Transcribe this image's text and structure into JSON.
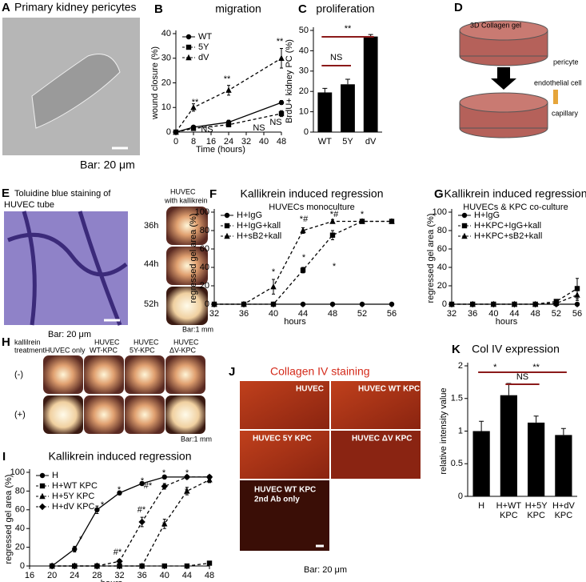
{
  "panels": {
    "A": {
      "letter": "A",
      "title": "Primary kidney pericytes",
      "scale_bar": "Bar: 20 μm"
    },
    "D": {
      "letter": "D",
      "gel_label": "3D Collagen gel",
      "legend": [
        "pericyte",
        "endothelial cell",
        "capillary"
      ]
    },
    "E": {
      "letter": "E",
      "title": [
        "Toluidine blue staining of",
        "HUVEC tube"
      ],
      "scale_bar": "Bar: 20 μm",
      "inset_title": [
        "HUVEC",
        "with kallikrein"
      ],
      "times": [
        "36h",
        "44h",
        "52h"
      ],
      "inset_scale_bar": "Bar:1 mm"
    },
    "H": {
      "letter": "H",
      "row_header": [
        "kallilrein",
        "treatment"
      ],
      "columns": [
        [
          "HUVEC only"
        ],
        [
          "HUVEC",
          "WT-KPC"
        ],
        [
          "HUVEC",
          "5Y-KPC"
        ],
        [
          "HUVEC",
          "ΔV-KPC"
        ]
      ],
      "rows": [
        "(-)",
        "(+)"
      ],
      "scale_bar": "Bar:1 mm"
    },
    "J": {
      "letter": "J",
      "title": "Collagen IV staining",
      "tiles": [
        "HUVEC",
        "HUVEC WT KPC",
        "HUVEC 5Y KPC",
        "HUVEC ΔV KPC",
        "HUVEC WT KPC"
      ],
      "tile_note": "2nd Ab only",
      "scale_bar": "Bar: 20 μm"
    }
  },
  "chart_data": [
    {
      "panel": "B",
      "type": "line",
      "title": "migration",
      "x_label": "Time (hours)",
      "y_label": "wound closure (%)",
      "x": [
        0,
        8,
        24,
        48
      ],
      "xlim": [
        0,
        48
      ],
      "xticks": [
        0,
        8,
        16,
        24,
        32,
        40,
        48
      ],
      "ylim": [
        0,
        40
      ],
      "yticks": [
        0,
        10,
        20,
        30,
        40
      ],
      "legend": "top-left",
      "series": [
        {
          "name": "WT",
          "marker": "circle",
          "dash": false,
          "color": "#000000",
          "values": [
            0,
            2,
            4,
            12
          ],
          "errors": [
            0,
            0.5,
            0.8,
            0.8
          ]
        },
        {
          "name": "5Y",
          "marker": "square",
          "dash": true,
          "color": "#000000",
          "values": [
            0,
            1.5,
            3,
            7.5
          ],
          "errors": [
            0,
            0.4,
            0.6,
            1.2
          ]
        },
        {
          "name": "dV",
          "marker": "triangle",
          "dash": true,
          "color": "#000000",
          "values": [
            0,
            10,
            17,
            30
          ],
          "errors": [
            0,
            1.5,
            2,
            4
          ]
        }
      ],
      "annotations": [
        "**",
        "**",
        "**",
        "NS",
        "NS",
        "NS"
      ]
    },
    {
      "panel": "C",
      "type": "bar",
      "title": "proliferation",
      "y_label": "BrdU+ kidney PC (%)",
      "categories": [
        "WT",
        "5Y",
        "dV"
      ],
      "values": [
        19.5,
        23.5,
        47
      ],
      "errors": [
        2,
        2.5,
        1
      ],
      "color": "#000000",
      "ylim": [
        0,
        50
      ],
      "yticks": [
        0,
        10,
        20,
        30,
        40,
        50
      ],
      "annotations": [
        "NS",
        "**"
      ],
      "bracket_color": "#8b1a1a"
    },
    {
      "panel": "F",
      "type": "line",
      "title": "Kallikrein induced regression",
      "subtitle": "HUVECs monoculture",
      "x_label": "hours",
      "y_label": "regressed gel area (%)",
      "x": [
        32,
        36,
        40,
        44,
        48,
        52,
        56
      ],
      "xlim": [
        32,
        56
      ],
      "xticks": [
        32,
        36,
        40,
        44,
        48,
        52,
        56
      ],
      "ylim": [
        0,
        100
      ],
      "yticks": [
        0,
        20,
        40,
        60,
        80,
        100
      ],
      "legend": "top-left",
      "series": [
        {
          "name": "H+IgG",
          "marker": "circle",
          "dash": false,
          "color": "#000000",
          "values": [
            0,
            0,
            0,
            0,
            0,
            0,
            0
          ]
        },
        {
          "name": "H+IgG+kall",
          "marker": "square",
          "dash": true,
          "color": "#000000",
          "values": [
            0,
            0,
            0,
            37,
            75,
            90,
            90
          ],
          "errors": [
            0,
            0,
            0,
            3,
            5,
            1,
            1
          ]
        },
        {
          "name": "H+sB2+kall",
          "marker": "triangle",
          "dash": true,
          "color": "#000000",
          "values": [
            0,
            0,
            19,
            80,
            90,
            90,
            90
          ],
          "errors": [
            0,
            0,
            8,
            3,
            2,
            1,
            1
          ]
        }
      ],
      "annotations": [
        "*",
        "*#",
        "*#",
        "*",
        "*",
        "*"
      ]
    },
    {
      "panel": "G",
      "type": "line",
      "title": "Kallikrein induced regression",
      "subtitle": "HUVECs & KPC co-culture",
      "x_label": "hours",
      "y_label": "regressed gel area (%)",
      "x": [
        32,
        36,
        40,
        44,
        48,
        52,
        56
      ],
      "xlim": [
        32,
        56
      ],
      "xticks": [
        32,
        36,
        40,
        44,
        48,
        52,
        56
      ],
      "ylim": [
        0,
        100
      ],
      "yticks": [
        0,
        20,
        40,
        60,
        80,
        100
      ],
      "legend": "top-left",
      "series": [
        {
          "name": "H+IgG",
          "marker": "circle",
          "dash": false,
          "color": "#000000",
          "values": [
            0,
            0,
            0,
            0,
            0,
            0,
            0
          ]
        },
        {
          "name": "H+KPC+IgG+kall",
          "marker": "square",
          "dash": true,
          "color": "#000000",
          "values": [
            0,
            0,
            0,
            0,
            0,
            3,
            17
          ],
          "errors": [
            0,
            0,
            0,
            0,
            0,
            1,
            11
          ]
        },
        {
          "name": "H+KPC+sB2+kall",
          "marker": "triangle",
          "dash": true,
          "color": "#000000",
          "values": [
            0,
            0,
            0,
            0,
            0,
            1,
            10
          ],
          "errors": [
            0,
            0,
            0,
            0,
            0,
            0.5,
            6
          ]
        }
      ],
      "annotations": []
    },
    {
      "panel": "I",
      "type": "line",
      "title": "Kallikrein induced regression",
      "x_label": "hours",
      "y_label": "regressed gel area (%)",
      "x": [
        20,
        24,
        28,
        32,
        36,
        40,
        44,
        48
      ],
      "xlim": [
        16,
        48
      ],
      "xticks": [
        16,
        20,
        24,
        28,
        32,
        36,
        40,
        44,
        48
      ],
      "ylim": [
        0,
        100
      ],
      "yticks": [
        0,
        20,
        40,
        60,
        80,
        100
      ],
      "legend": "top-left",
      "series": [
        {
          "name": "H",
          "marker": "circle",
          "dash": false,
          "color": "#000000",
          "values": [
            0,
            18,
            60,
            78,
            88,
            95,
            95,
            95
          ],
          "errors": [
            0,
            3,
            4,
            2,
            2,
            1,
            1,
            1
          ]
        },
        {
          "name": "H+WT KPC",
          "marker": "square",
          "dash": true,
          "color": "#000000",
          "values": [
            0,
            0,
            0,
            0,
            0,
            0,
            0,
            3
          ],
          "errors": [
            0,
            0,
            0,
            0,
            0,
            0,
            0,
            1.5
          ]
        },
        {
          "name": "H+5Y KPC",
          "marker": "triangle",
          "dash": true,
          "color": "#000000",
          "values": [
            0,
            0,
            0,
            0,
            0,
            45,
            80,
            92
          ],
          "errors": [
            0,
            0,
            0,
            0,
            0,
            5,
            4,
            3
          ]
        },
        {
          "name": "H+dV KPC",
          "marker": "diamond",
          "dash": true,
          "color": "#000000",
          "values": [
            0,
            0,
            0,
            5,
            47,
            85,
            95,
            95
          ],
          "errors": [
            0,
            0,
            0,
            2,
            5,
            3,
            1,
            1
          ]
        }
      ],
      "annotations": [
        "*",
        "*",
        "*",
        "*",
        "*",
        "*",
        "#*",
        "#*",
        "#*",
        "*",
        "*"
      ]
    },
    {
      "panel": "K",
      "type": "bar",
      "title": "Col IV expression",
      "y_label": "relative intensity value",
      "categories": [
        "H",
        "H+WT KPC",
        "H+5Y KPC",
        "H+dV KPC"
      ],
      "values": [
        1,
        1.55,
        1.13,
        0.94
      ],
      "errors": [
        0.15,
        0.18,
        0.1,
        0.1
      ],
      "color": "#000000",
      "ylim": [
        0,
        2
      ],
      "yticks": [
        0,
        0.5,
        1,
        1.5,
        2
      ],
      "annotations": [
        "*",
        "NS",
        "**"
      ],
      "bracket_color": "#8b1a1a"
    }
  ]
}
